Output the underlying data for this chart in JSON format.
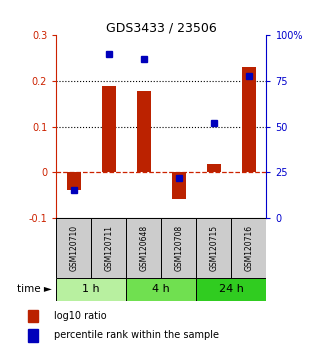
{
  "title": "GDS3433 / 23506",
  "samples": [
    "GSM120710",
    "GSM120711",
    "GSM120648",
    "GSM120708",
    "GSM120715",
    "GSM120716"
  ],
  "log10_ratio": [
    -0.04,
    0.19,
    0.178,
    -0.06,
    0.017,
    0.23
  ],
  "percentile_rank_pct": [
    15,
    90,
    87,
    22,
    52,
    78
  ],
  "time_groups": [
    {
      "label": "1 h",
      "samples": [
        0,
        1
      ],
      "color": "#b8f0a0"
    },
    {
      "label": "4 h",
      "samples": [
        2,
        3
      ],
      "color": "#70e050"
    },
    {
      "label": "24 h",
      "samples": [
        4,
        5
      ],
      "color": "#30cc20"
    }
  ],
  "bar_color_red": "#bb2200",
  "bar_color_blue": "#0000bb",
  "left_axis_color": "#cc2200",
  "right_axis_color": "#0000cc",
  "ylim_left": [
    -0.1,
    0.3
  ],
  "ylim_right": [
    0,
    100
  ],
  "yticks_left": [
    -0.1,
    0.0,
    0.1,
    0.2,
    0.3
  ],
  "ytick_labels_left": [
    "-0.1",
    "0",
    "0.1",
    "0.2",
    "0.3"
  ],
  "yticks_right": [
    0,
    25,
    50,
    75,
    100
  ],
  "ytick_labels_right": [
    "0",
    "25",
    "50",
    "75",
    "100%"
  ],
  "hline_y": [
    0.1,
    0.2
  ],
  "zero_dashed_color": "#cc2200",
  "sample_box_color": "#cccccc",
  "bar_width": 0.4
}
